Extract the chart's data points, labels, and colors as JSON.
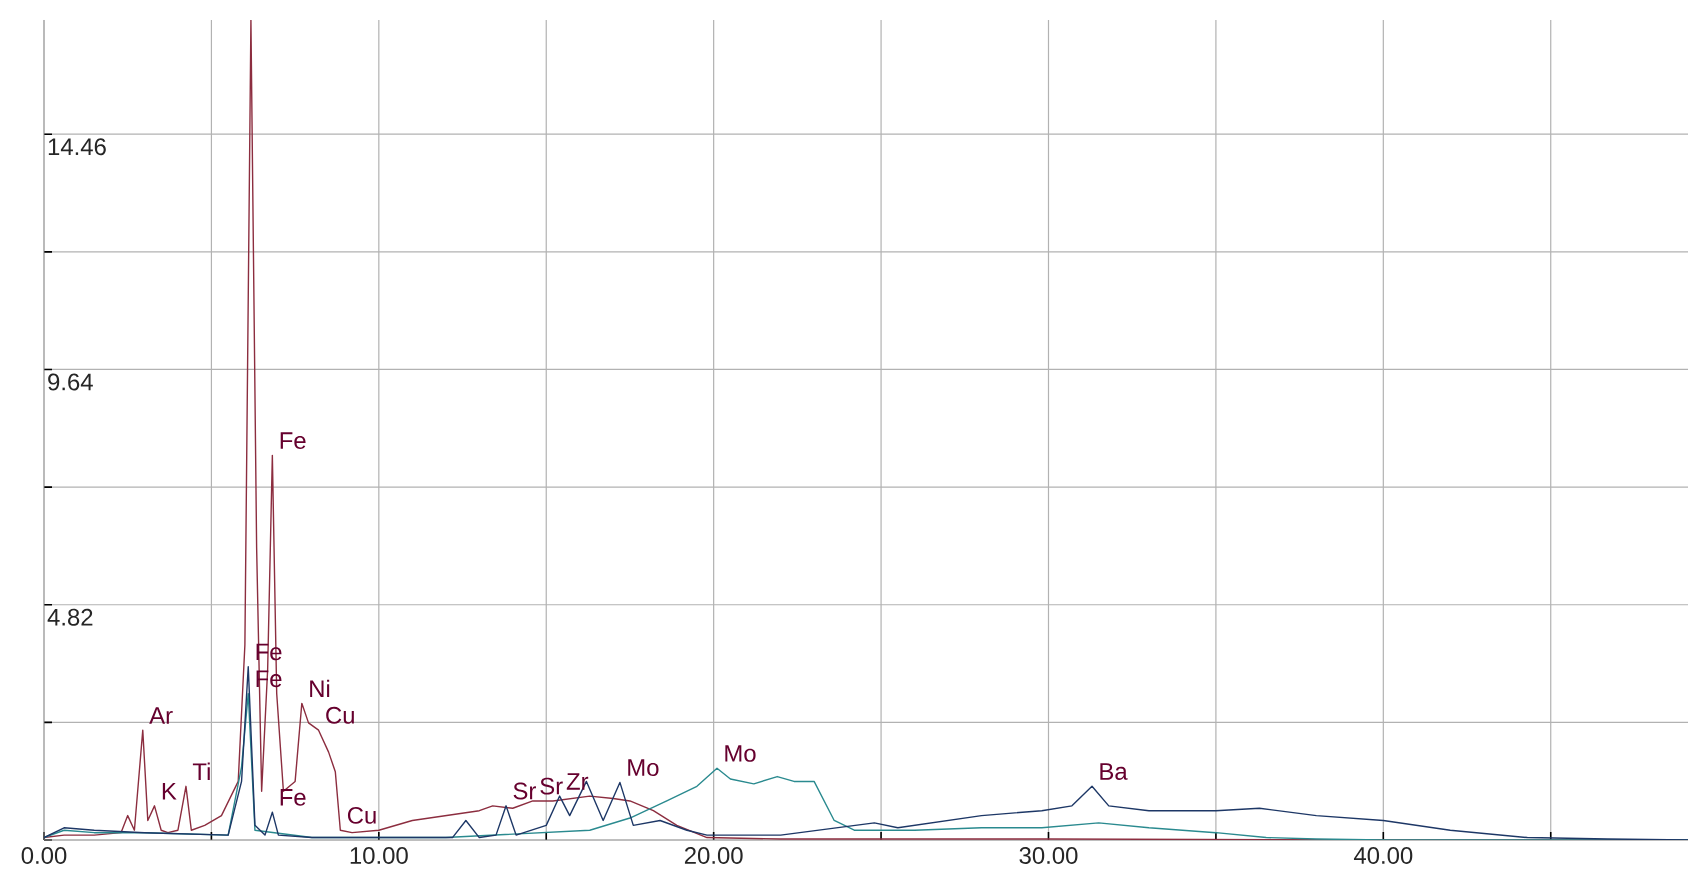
{
  "chart_data": {
    "type": "line",
    "xlim": [
      0,
      49.1
    ],
    "ylim": [
      0,
      16.8
    ],
    "xticks": [
      {
        "value": 0,
        "label": "0.00"
      },
      {
        "value": 5,
        "label": null
      },
      {
        "value": 10,
        "label": "10.00"
      },
      {
        "value": 15,
        "label": null
      },
      {
        "value": 20,
        "label": "20.00"
      },
      {
        "value": 25,
        "label": null
      },
      {
        "value": 30,
        "label": "30.00"
      },
      {
        "value": 35,
        "label": null
      },
      {
        "value": 40,
        "label": "40.00"
      },
      {
        "value": 45,
        "label": null
      }
    ],
    "yticks": [
      {
        "value": 0,
        "label": null
      },
      {
        "value": 2.41,
        "label": null
      },
      4.82,
      {
        "value": 7.23,
        "label": null
      },
      9.64,
      {
        "value": 12.05,
        "label": null
      },
      14.46
    ],
    "grid": true,
    "marker": "none",
    "line_style": "solid",
    "series": [
      {
        "color": "#8c2d3f",
        "x": [
          0,
          0.6,
          1.5,
          2.3,
          2.5,
          2.7,
          2.95,
          3.1,
          3.3,
          3.5,
          3.7,
          4.0,
          4.24,
          4.4,
          4.8,
          5.3,
          5.8,
          6.0,
          6.18,
          6.35,
          6.5,
          6.68,
          6.82,
          6.95,
          7.15,
          7.5,
          7.7,
          7.9,
          8.2,
          8.5,
          8.7,
          8.85,
          9.2,
          10.0,
          11.0,
          12.0,
          13.0,
          13.4,
          14.0,
          14.6,
          15.2,
          16.3,
          17.0,
          17.5,
          18.2,
          18.9,
          19.8,
          22,
          30,
          40,
          49.1
        ],
        "values": [
          0.05,
          0.1,
          0.1,
          0.15,
          0.5,
          0.2,
          2.25,
          0.4,
          0.7,
          0.2,
          0.15,
          0.2,
          1.1,
          0.2,
          0.3,
          0.5,
          1.2,
          4.0,
          16.8,
          6.0,
          1.0,
          3.5,
          7.88,
          3.0,
          1.0,
          1.2,
          2.8,
          2.4,
          2.25,
          1.8,
          1.4,
          0.2,
          0.15,
          0.2,
          0.4,
          0.5,
          0.6,
          0.7,
          0.65,
          0.8,
          0.8,
          0.9,
          0.85,
          0.8,
          0.6,
          0.3,
          0.05,
          0.02,
          0.02,
          0.0,
          0.0
        ]
      },
      {
        "color": "#2a8a8f",
        "x": [
          0,
          0.6,
          1.5,
          3,
          5.5,
          5.9,
          6.1,
          6.3,
          8,
          12,
          16.3,
          17.5,
          18.6,
          19.5,
          20.1,
          20.5,
          21.2,
          21.9,
          22.4,
          23.0,
          23.6,
          24.2,
          26,
          28,
          29.8,
          31.5,
          33,
          35,
          36.5,
          38,
          40,
          49.1
        ],
        "values": [
          0.05,
          0.2,
          0.15,
          0.15,
          0.1,
          1.5,
          3.0,
          0.2,
          0.05,
          0.05,
          0.2,
          0.45,
          0.8,
          1.1,
          1.47,
          1.25,
          1.15,
          1.3,
          1.2,
          1.2,
          0.4,
          0.2,
          0.2,
          0.25,
          0.25,
          0.35,
          0.25,
          0.15,
          0.05,
          0.02,
          0.0,
          0.0
        ]
      },
      {
        "color": "#1d3766",
        "x": [
          0,
          0.6,
          1.5,
          3,
          5.5,
          5.9,
          6.1,
          6.3,
          6.6,
          6.82,
          7.0,
          8,
          12.2,
          12.6,
          13.0,
          13.5,
          13.8,
          14.1,
          15.0,
          15.4,
          15.7,
          16.2,
          16.7,
          17.2,
          17.6,
          18.4,
          19.2,
          19.8,
          22,
          24.8,
          25.5,
          28,
          29.8,
          30.7,
          31.3,
          31.8,
          33,
          35,
          36.3,
          38,
          40,
          42,
          44.3,
          46.7,
          49.1
        ],
        "values": [
          0.05,
          0.25,
          0.2,
          0.15,
          0.1,
          1.2,
          3.55,
          0.3,
          0.1,
          0.57,
          0.1,
          0.05,
          0.05,
          0.4,
          0.05,
          0.1,
          0.7,
          0.1,
          0.3,
          0.9,
          0.5,
          1.2,
          0.4,
          1.18,
          0.3,
          0.4,
          0.2,
          0.1,
          0.1,
          0.35,
          0.25,
          0.5,
          0.6,
          0.7,
          1.1,
          0.7,
          0.6,
          0.6,
          0.65,
          0.5,
          0.4,
          0.2,
          0.05,
          0.02,
          0.0
        ]
      }
    ],
    "annotations": [
      {
        "text": "K",
        "x": 3.3,
        "y": 0.7
      },
      {
        "text": "Ar",
        "x": 2.95,
        "y": 2.25
      },
      {
        "text": "Ti",
        "x": 4.24,
        "y": 1.1
      },
      {
        "text": "Fe",
        "x": 6.82,
        "y": 7.88
      },
      {
        "text": "Fe",
        "x": 6.1,
        "y": 3.0
      },
      {
        "text": "Fe",
        "x": 6.1,
        "y": 3.55
      },
      {
        "text": "Cu",
        "x": 8.85,
        "y": 0.2
      },
      {
        "text": "Ni",
        "x": 7.7,
        "y": 2.8
      },
      {
        "text": "Cu",
        "x": 8.2,
        "y": 2.25
      },
      {
        "text": "Fe",
        "x": 6.82,
        "y": 0.57
      },
      {
        "text": "Sr",
        "x": 14.6,
        "y": 0.8
      },
      {
        "text": "Sr",
        "x": 13.8,
        "y": 0.7
      },
      {
        "text": "Zr",
        "x": 15.4,
        "y": 0.9
      },
      {
        "text": "Mo",
        "x": 17.2,
        "y": 1.18
      },
      {
        "text": "Mo",
        "x": 20.1,
        "y": 1.47
      },
      {
        "text": "Ba",
        "x": 31.3,
        "y": 1.1
      }
    ]
  }
}
